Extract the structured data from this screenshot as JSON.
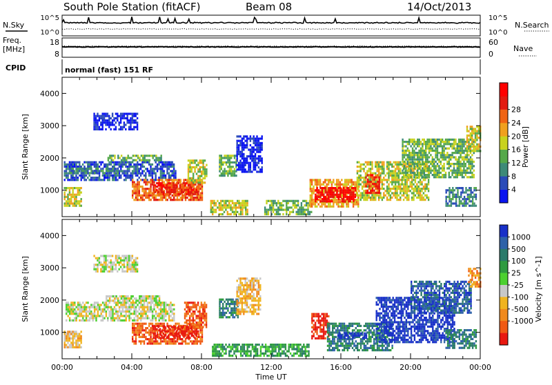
{
  "header": {
    "station": "South Pole Station (fitACF)",
    "beam": "Beam 08",
    "date": "14/Oct/2013"
  },
  "strip_labels": {
    "nsky": "N.Sky",
    "nsearch": "N.Search",
    "freq_line1": "Freq.",
    "freq_line2": "[MHz]",
    "nave": "Nave",
    "cpid": "CPID",
    "mode": "normal (fast) 151 RF"
  },
  "strip_ticks": {
    "noise_top": "10^5",
    "noise_bottom": "10^0",
    "freq_top": "18",
    "freq_bottom": "8",
    "nave_top": "60",
    "nave_bottom": "0"
  },
  "chart_data": [
    {
      "type": "heatmap",
      "panel": "power",
      "xlabel": "Time UT",
      "ylabel": "Slant Range [km]",
      "x_ticks": [
        "00:00",
        "04:00",
        "08:00",
        "12:00",
        "16:00",
        "20:00",
        "00:00"
      ],
      "xlim_hours": [
        0,
        24
      ],
      "y_ticks": [
        1000,
        2000,
        3000,
        4000
      ],
      "ylim": [
        180,
        4500
      ],
      "colorbar": {
        "label": "Power [dB]",
        "ticks": [
          "4",
          "8",
          "12",
          "16",
          "20",
          "24",
          "28"
        ],
        "colors": [
          "#0a14f0",
          "#2a4bb8",
          "#3d8a78",
          "#55a84a",
          "#c8d21e",
          "#f0a01e",
          "#f06414",
          "#e21a10",
          "#ff0000"
        ]
      },
      "regions": [
        {
          "t0": 0.1,
          "t1": 6.5,
          "r0": 1300,
          "r1": 1900,
          "level": 1
        },
        {
          "t0": 0.4,
          "t1": 3.2,
          "r0": 1500,
          "r1": 1700,
          "level": 2
        },
        {
          "t0": 2.6,
          "t1": 5.7,
          "r0": 1950,
          "r1": 2100,
          "level": 3
        },
        {
          "t0": 1.8,
          "t1": 4.3,
          "r0": 2900,
          "r1": 3400,
          "level": 0
        },
        {
          "t0": 0.1,
          "t1": 1.1,
          "r0": 550,
          "r1": 1100,
          "level": 4
        },
        {
          "t0": 4.0,
          "t1": 8.0,
          "r0": 700,
          "r1": 1350,
          "level": 6
        },
        {
          "t0": 5.2,
          "t1": 7.8,
          "r0": 850,
          "r1": 1250,
          "level": 7
        },
        {
          "t0": 7.2,
          "t1": 8.3,
          "r0": 1200,
          "r1": 1950,
          "level": 4
        },
        {
          "t0": 9.0,
          "t1": 10.0,
          "r0": 1450,
          "r1": 2100,
          "level": 3
        },
        {
          "t0": 8.5,
          "t1": 10.6,
          "r0": 280,
          "r1": 700,
          "level": 4
        },
        {
          "t0": 10.0,
          "t1": 11.5,
          "r0": 1600,
          "r1": 2700,
          "level": 0
        },
        {
          "t0": 11.6,
          "t1": 14.3,
          "r0": 280,
          "r1": 700,
          "level": 3
        },
        {
          "t0": 14.2,
          "t1": 17.0,
          "r0": 500,
          "r1": 1350,
          "level": 5
        },
        {
          "t0": 14.5,
          "t1": 16.8,
          "r0": 650,
          "r1": 1100,
          "level": 8
        },
        {
          "t0": 16.9,
          "t1": 21.0,
          "r0": 700,
          "r1": 1900,
          "level": 4
        },
        {
          "t0": 17.4,
          "t1": 18.2,
          "r0": 900,
          "r1": 1500,
          "level": 7
        },
        {
          "t0": 19.5,
          "t1": 23.6,
          "r0": 1400,
          "r1": 2600,
          "level": 3
        },
        {
          "t0": 22.0,
          "t1": 23.8,
          "r0": 550,
          "r1": 1100,
          "level": 2
        },
        {
          "t0": 23.2,
          "t1": 24.0,
          "r0": 2200,
          "r1": 3000,
          "level": 4
        }
      ]
    },
    {
      "type": "heatmap",
      "panel": "velocity",
      "xlabel": "Time UT",
      "ylabel": "Slant Range [km]",
      "x_ticks": [
        "00:00",
        "04:00",
        "08:00",
        "12:00",
        "16:00",
        "20:00",
        "00:00"
      ],
      "xlim_hours": [
        0,
        24
      ],
      "y_ticks": [
        1000,
        2000,
        3000,
        4000
      ],
      "ylim": [
        180,
        4500
      ],
      "colorbar": {
        "label": "Velocity [m s^-1]",
        "ticks": [
          "1000",
          "500",
          "100",
          "25",
          "-25",
          "-100",
          "-500",
          "-1000"
        ],
        "colors": [
          "#1830c8",
          "#2e62a8",
          "#2a7a6a",
          "#2e9a40",
          "#4cd030",
          "#c8c8c8",
          "#f0b420",
          "#f08a1e",
          "#f05a14",
          "#e81810"
        ]
      },
      "regions": [
        {
          "t0": 0.2,
          "t1": 6.4,
          "r0": 1400,
          "r1": 1950,
          "level": 5
        },
        {
          "t0": 2.5,
          "t1": 5.6,
          "r0": 1950,
          "r1": 2150,
          "level": 5
        },
        {
          "t0": 1.8,
          "t1": 4.3,
          "r0": 2900,
          "r1": 3400,
          "level": 5
        },
        {
          "t0": 0.1,
          "t1": 1.1,
          "r0": 550,
          "r1": 1050,
          "level": 6
        },
        {
          "t0": 4.0,
          "t1": 8.0,
          "r0": 650,
          "r1": 1300,
          "level": 8
        },
        {
          "t0": 5.2,
          "t1": 7.8,
          "r0": 800,
          "r1": 1200,
          "level": 9
        },
        {
          "t0": 7.0,
          "t1": 8.3,
          "r0": 1150,
          "r1": 1950,
          "level": 8
        },
        {
          "t0": 9.0,
          "t1": 10.1,
          "r0": 1500,
          "r1": 2050,
          "level": 2
        },
        {
          "t0": 8.6,
          "t1": 14.2,
          "r0": 250,
          "r1": 650,
          "level": 3
        },
        {
          "t0": 10.0,
          "t1": 11.4,
          "r0": 1600,
          "r1": 2700,
          "level": 6
        },
        {
          "t0": 14.3,
          "t1": 15.3,
          "r0": 800,
          "r1": 1600,
          "level": 9
        },
        {
          "t0": 15.2,
          "t1": 19.0,
          "r0": 450,
          "r1": 1300,
          "level": 2
        },
        {
          "t0": 15.8,
          "t1": 17.5,
          "r0": 800,
          "r1": 1000,
          "level": 0
        },
        {
          "t0": 18.0,
          "t1": 22.5,
          "r0": 700,
          "r1": 2100,
          "level": 0
        },
        {
          "t0": 20.0,
          "t1": 23.5,
          "r0": 1600,
          "r1": 2600,
          "level": 1
        },
        {
          "t0": 22.0,
          "t1": 23.8,
          "r0": 500,
          "r1": 1100,
          "level": 2
        },
        {
          "t0": 23.3,
          "t1": 24.0,
          "r0": 2400,
          "r1": 3000,
          "level": 7
        }
      ]
    }
  ]
}
